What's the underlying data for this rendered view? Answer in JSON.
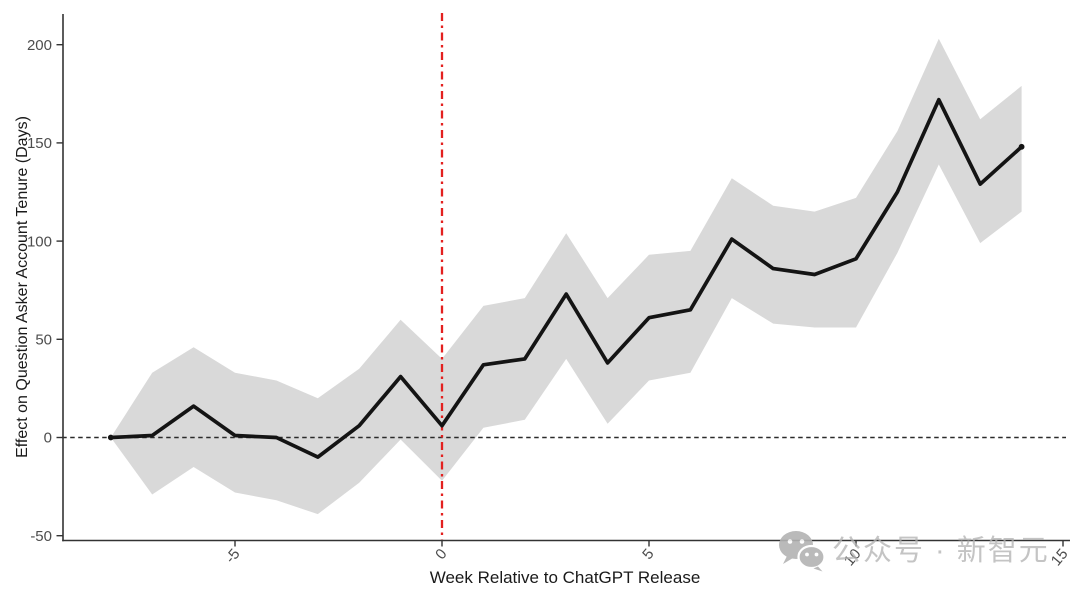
{
  "chart_data": {
    "type": "line",
    "title": "",
    "xlabel": "Week Relative to ChatGPT Release",
    "ylabel": "Effect on Question Asker Account Tenure (Days)",
    "x": [
      -8,
      -7,
      -6,
      -5,
      -4,
      -3,
      -2,
      -1,
      0,
      1,
      2,
      3,
      4,
      5,
      6,
      7,
      8,
      9,
      10,
      11,
      12,
      13,
      14
    ],
    "series": [
      {
        "name": "point-estimate",
        "values": [
          0,
          1,
          16,
          1,
          0,
          -10,
          6,
          31,
          6,
          37,
          40,
          73,
          38,
          61,
          65,
          101,
          86,
          83,
          91,
          125,
          172,
          129,
          148
        ]
      },
      {
        "name": "ci-upper",
        "values": [
          0,
          33,
          46,
          33,
          29,
          20,
          35,
          60,
          40,
          67,
          71,
          104,
          71,
          93,
          95,
          132,
          118,
          115,
          122,
          156,
          203,
          162,
          179
        ]
      },
      {
        "name": "ci-lower",
        "values": [
          0,
          -29,
          -15,
          -28,
          -32,
          -39,
          -23,
          -1,
          -22,
          5,
          9,
          40,
          7,
          29,
          33,
          71,
          58,
          56,
          56,
          94,
          139,
          99,
          115
        ]
      }
    ],
    "x_ticks": [
      "-5",
      "0",
      "5",
      "10",
      "15"
    ],
    "x_tick_values": [
      -5,
      0,
      5,
      10,
      15
    ],
    "y_ticks": [
      "200",
      "150",
      "100",
      "50",
      "0",
      "-50"
    ],
    "y_tick_values": [
      200,
      150,
      100,
      50,
      0,
      -50
    ],
    "xlim": [
      -8.3,
      15.2
    ],
    "ylim": [
      -57,
      216
    ],
    "reference_lines": {
      "vertical_at_x": 0,
      "horizontal_at_y": 0
    },
    "grid": false,
    "legend_position": "none"
  },
  "watermark": {
    "text": "公众号 · 新智元",
    "icon": "wechat-icon"
  },
  "colors": {
    "line": "#141414",
    "band": "#d9d9d9",
    "release_line": "#e3201f",
    "zero_line": "#2b2b2b",
    "axis": "#333333",
    "tick_text": "#4d4d4d",
    "watermark": "#b3b3b3",
    "background": "#ffffff"
  }
}
